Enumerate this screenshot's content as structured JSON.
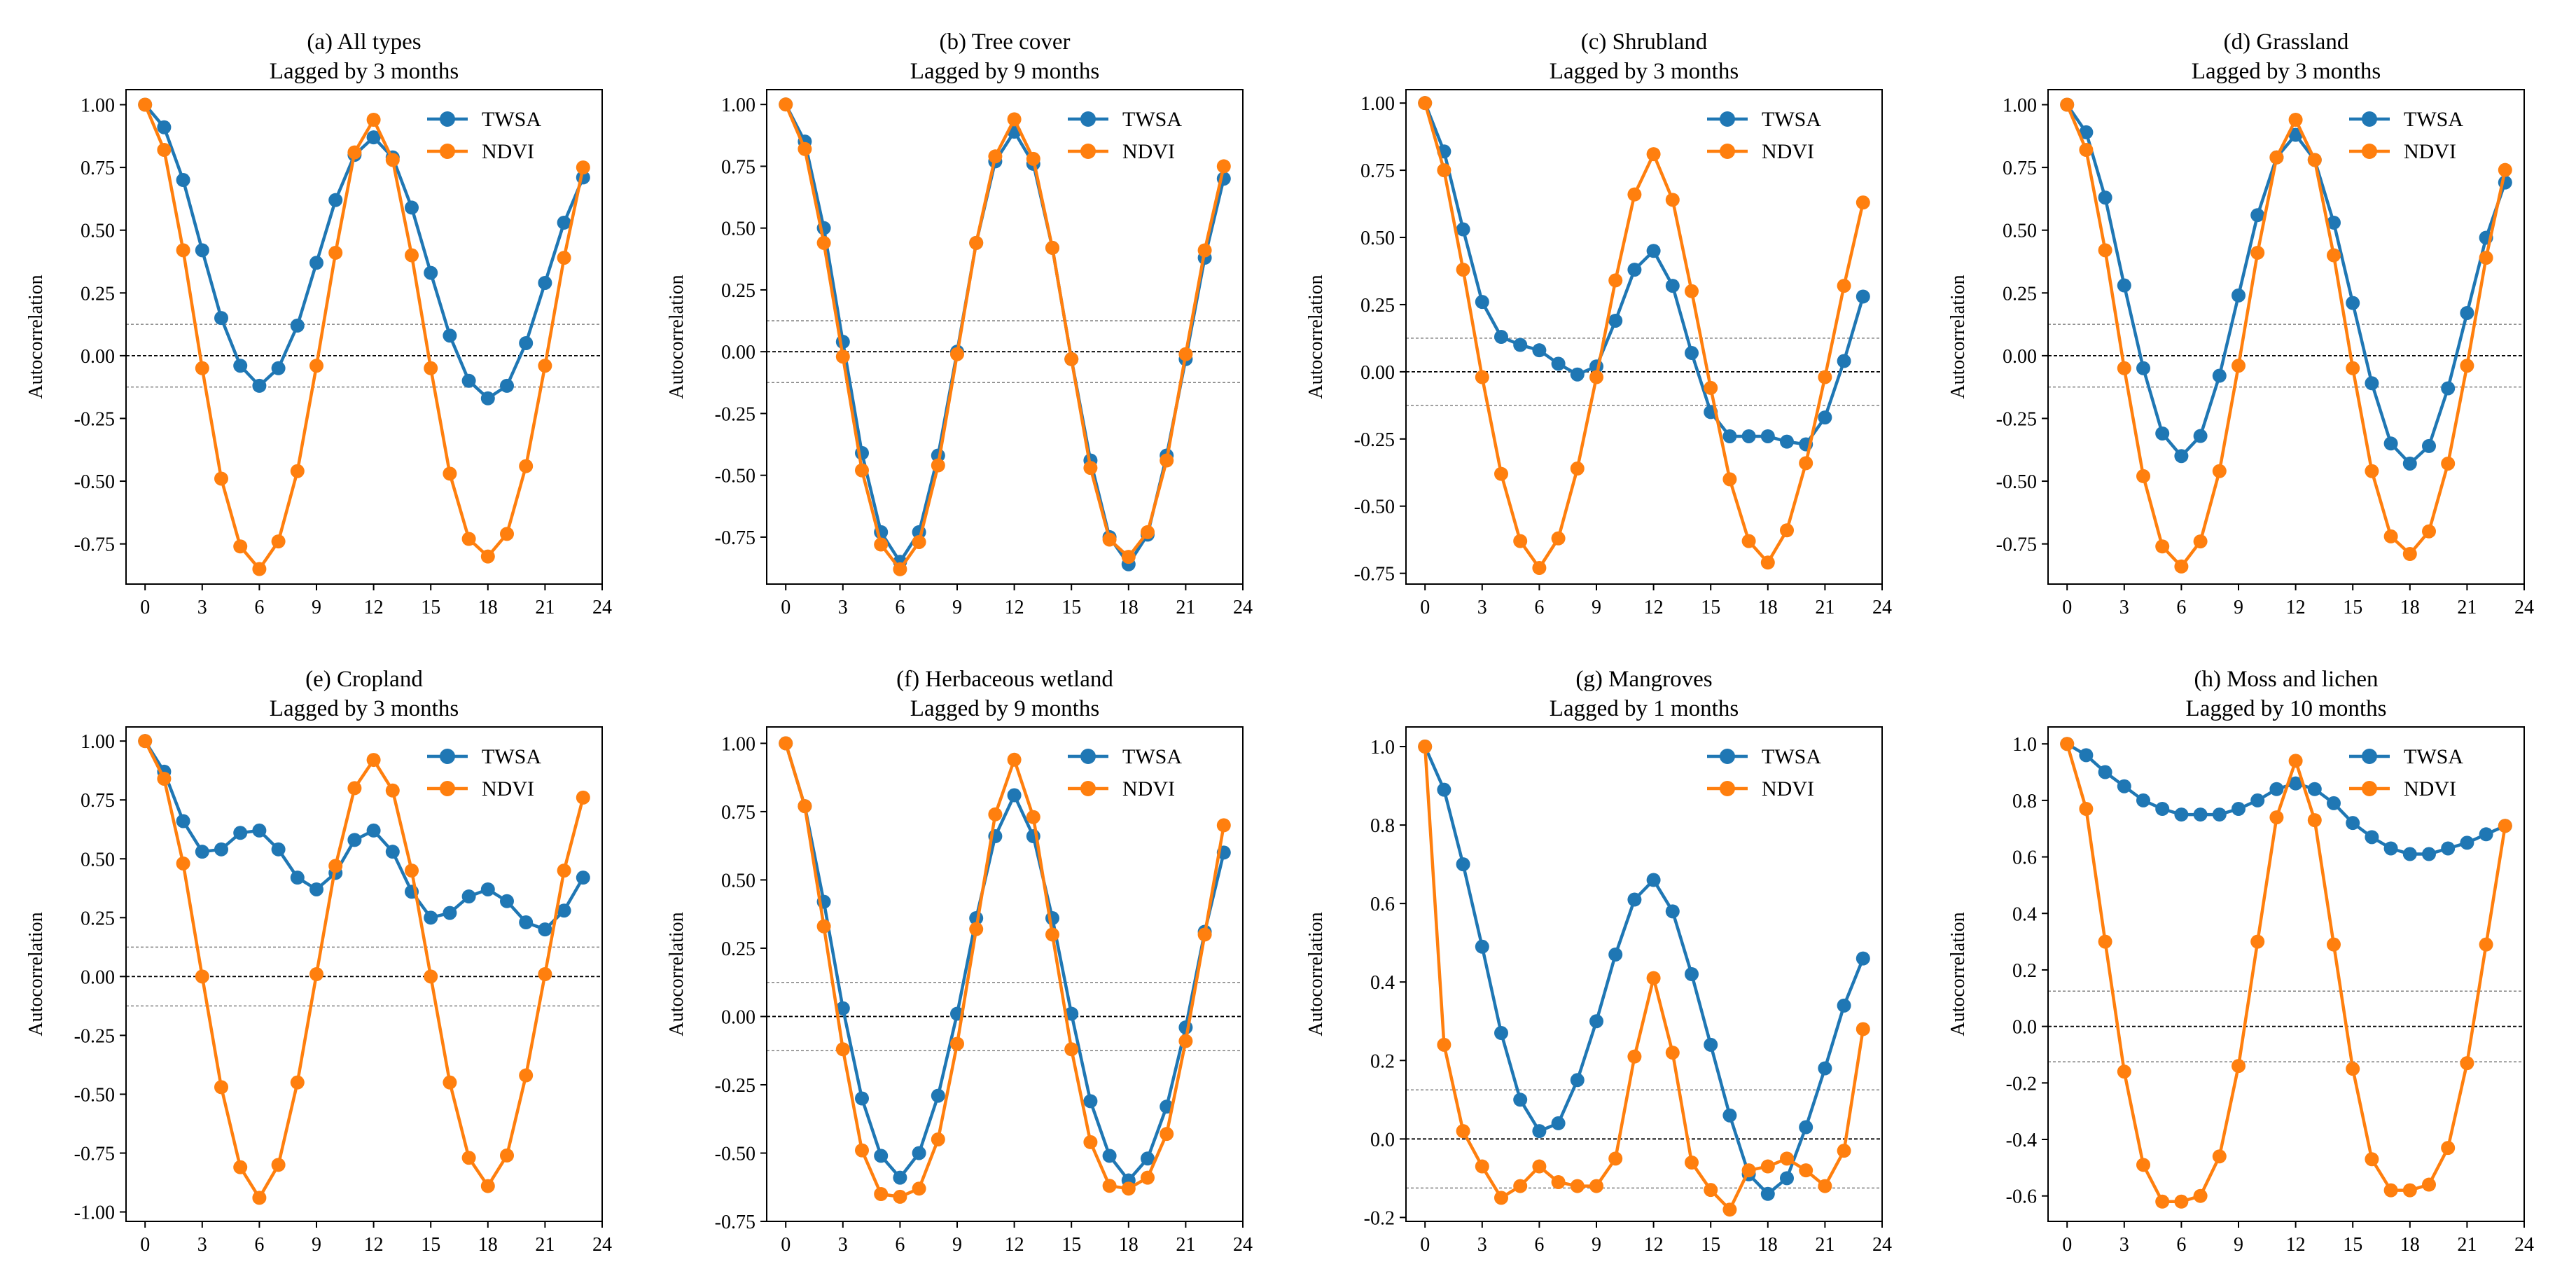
{
  "figure": {
    "series_names": [
      "TWSA",
      "NDVI"
    ],
    "colors": {
      "TWSA": "#1f77b4",
      "NDVI": "#ff7f0e",
      "zero_line": "#000000",
      "threshold_line": "#808080"
    },
    "significance_threshold": 0.125
  },
  "chart_data": [
    {
      "type": "line",
      "title": "(a) All types",
      "subtitle": "Lagged by 3 months",
      "xlabel": "",
      "ylabel": "Autocorrelation",
      "x": [
        0,
        1,
        2,
        3,
        4,
        5,
        6,
        7,
        8,
        9,
        10,
        11,
        12,
        13,
        14,
        15,
        16,
        17,
        18,
        19,
        20,
        21,
        22,
        23
      ],
      "xticks": [
        0,
        3,
        6,
        9,
        12,
        15,
        18,
        21,
        24
      ],
      "xlim": [
        -1,
        24
      ],
      "yticks": [
        -0.75,
        -0.5,
        -0.25,
        0.0,
        0.25,
        0.5,
        0.75,
        1.0
      ],
      "ytick_labels": [
        "-0.75",
        "-0.50",
        "-0.25",
        "0.00",
        "0.25",
        "0.50",
        "0.75",
        "1.00"
      ],
      "ylim": [
        -0.91,
        1.06
      ],
      "series": [
        {
          "name": "TWSA",
          "values": [
            1.0,
            0.91,
            0.7,
            0.42,
            0.15,
            -0.04,
            -0.12,
            -0.05,
            0.12,
            0.37,
            0.62,
            0.8,
            0.87,
            0.79,
            0.59,
            0.33,
            0.08,
            -0.1,
            -0.17,
            -0.12,
            0.05,
            0.29,
            0.53,
            0.71
          ]
        },
        {
          "name": "NDVI",
          "values": [
            1.0,
            0.82,
            0.42,
            -0.05,
            -0.49,
            -0.76,
            -0.85,
            -0.74,
            -0.46,
            -0.04,
            0.41,
            0.81,
            0.94,
            0.78,
            0.4,
            -0.05,
            -0.47,
            -0.73,
            -0.8,
            -0.71,
            -0.44,
            -0.04,
            0.39,
            0.75
          ]
        }
      ],
      "legend": "top-right"
    },
    {
      "type": "line",
      "title": "(b) Tree cover",
      "subtitle": "Lagged by 9 months",
      "xlabel": "",
      "ylabel": "Autocorrelation",
      "x": [
        0,
        1,
        2,
        3,
        4,
        5,
        6,
        7,
        8,
        9,
        10,
        11,
        12,
        13,
        14,
        15,
        16,
        17,
        18,
        19,
        20,
        21,
        22,
        23
      ],
      "xticks": [
        0,
        3,
        6,
        9,
        12,
        15,
        18,
        21,
        24
      ],
      "xlim": [
        -1,
        24
      ],
      "yticks": [
        -0.75,
        -0.5,
        -0.25,
        0.0,
        0.25,
        0.5,
        0.75,
        1.0
      ],
      "ytick_labels": [
        "-0.75",
        "-0.50",
        "-0.25",
        "0.00",
        "0.25",
        "0.50",
        "0.75",
        "1.00"
      ],
      "ylim": [
        -0.94,
        1.06
      ],
      "series": [
        {
          "name": "TWSA",
          "values": [
            1.0,
            0.85,
            0.5,
            0.04,
            -0.41,
            -0.73,
            -0.85,
            -0.73,
            -0.42,
            0.0,
            0.44,
            0.77,
            0.89,
            0.76,
            0.42,
            -0.03,
            -0.44,
            -0.75,
            -0.86,
            -0.74,
            -0.42,
            -0.03,
            0.38,
            0.7
          ]
        },
        {
          "name": "NDVI",
          "values": [
            1.0,
            0.82,
            0.44,
            -0.02,
            -0.48,
            -0.78,
            -0.88,
            -0.77,
            -0.46,
            -0.01,
            0.44,
            0.79,
            0.94,
            0.78,
            0.42,
            -0.03,
            -0.47,
            -0.76,
            -0.83,
            -0.73,
            -0.44,
            -0.01,
            0.41,
            0.75
          ]
        }
      ],
      "legend": "top-right"
    },
    {
      "type": "line",
      "title": "(c) Shrubland",
      "subtitle": "Lagged by 3 months",
      "xlabel": "",
      "ylabel": "Autocorrelation",
      "x": [
        0,
        1,
        2,
        3,
        4,
        5,
        6,
        7,
        8,
        9,
        10,
        11,
        12,
        13,
        14,
        15,
        16,
        17,
        18,
        19,
        20,
        21,
        22,
        23
      ],
      "xticks": [
        0,
        3,
        6,
        9,
        12,
        15,
        18,
        21,
        24
      ],
      "xlim": [
        -1,
        24
      ],
      "yticks": [
        -0.75,
        -0.5,
        -0.25,
        0.0,
        0.25,
        0.5,
        0.75,
        1.0
      ],
      "ytick_labels": [
        "-0.75",
        "-0.50",
        "-0.25",
        "0.00",
        "0.25",
        "0.50",
        "0.75",
        "1.00"
      ],
      "ylim": [
        -0.79,
        1.05
      ],
      "series": [
        {
          "name": "TWSA",
          "values": [
            1.0,
            0.82,
            0.53,
            0.26,
            0.13,
            0.1,
            0.08,
            0.03,
            -0.01,
            0.02,
            0.19,
            0.38,
            0.45,
            0.32,
            0.07,
            -0.15,
            -0.24,
            -0.24,
            -0.24,
            -0.26,
            -0.27,
            -0.17,
            0.04,
            0.28
          ]
        },
        {
          "name": "NDVI",
          "values": [
            1.0,
            0.75,
            0.38,
            -0.02,
            -0.38,
            -0.63,
            -0.73,
            -0.62,
            -0.36,
            -0.02,
            0.34,
            0.66,
            0.81,
            0.64,
            0.3,
            -0.06,
            -0.4,
            -0.63,
            -0.71,
            -0.59,
            -0.34,
            -0.02,
            0.32,
            0.63
          ]
        }
      ],
      "legend": "top-right"
    },
    {
      "type": "line",
      "title": "(d) Grassland",
      "subtitle": "Lagged by 3 months",
      "xlabel": "",
      "ylabel": "Autocorrelation",
      "x": [
        0,
        1,
        2,
        3,
        4,
        5,
        6,
        7,
        8,
        9,
        10,
        11,
        12,
        13,
        14,
        15,
        16,
        17,
        18,
        19,
        20,
        21,
        22,
        23
      ],
      "xticks": [
        0,
        3,
        6,
        9,
        12,
        15,
        18,
        21,
        24
      ],
      "xlim": [
        -1,
        24
      ],
      "yticks": [
        -0.75,
        -0.5,
        -0.25,
        0.0,
        0.25,
        0.5,
        0.75,
        1.0
      ],
      "ytick_labels": [
        "-0.75",
        "-0.50",
        "-0.25",
        "0.00",
        "0.25",
        "0.50",
        "0.75",
        "1.00"
      ],
      "ylim": [
        -0.91,
        1.06
      ],
      "series": [
        {
          "name": "TWSA",
          "values": [
            1.0,
            0.89,
            0.63,
            0.28,
            -0.05,
            -0.31,
            -0.4,
            -0.32,
            -0.08,
            0.24,
            0.56,
            0.79,
            0.88,
            0.78,
            0.53,
            0.21,
            -0.11,
            -0.35,
            -0.43,
            -0.36,
            -0.13,
            0.17,
            0.47,
            0.69
          ]
        },
        {
          "name": "NDVI",
          "values": [
            1.0,
            0.82,
            0.42,
            -0.05,
            -0.48,
            -0.76,
            -0.84,
            -0.74,
            -0.46,
            -0.04,
            0.41,
            0.79,
            0.94,
            0.78,
            0.4,
            -0.05,
            -0.46,
            -0.72,
            -0.79,
            -0.7,
            -0.43,
            -0.04,
            0.39,
            0.74
          ]
        }
      ],
      "legend": "top-right"
    },
    {
      "type": "line",
      "title": "(e) Cropland",
      "subtitle": "Lagged by 3 months",
      "xlabel": "",
      "ylabel": "Autocorrelation",
      "x": [
        0,
        1,
        2,
        3,
        4,
        5,
        6,
        7,
        8,
        9,
        10,
        11,
        12,
        13,
        14,
        15,
        16,
        17,
        18,
        19,
        20,
        21,
        22,
        23
      ],
      "xticks": [
        0,
        3,
        6,
        9,
        12,
        15,
        18,
        21,
        24
      ],
      "xlim": [
        -1,
        24
      ],
      "yticks": [
        -1.0,
        -0.75,
        -0.5,
        -0.25,
        0.0,
        0.25,
        0.5,
        0.75,
        1.0
      ],
      "ytick_labels": [
        "-1.00",
        "-0.75",
        "-0.50",
        "-0.25",
        "0.00",
        "0.25",
        "0.50",
        "0.75",
        "1.00"
      ],
      "ylim": [
        -1.04,
        1.06
      ],
      "series": [
        {
          "name": "TWSA",
          "values": [
            1.0,
            0.87,
            0.66,
            0.53,
            0.54,
            0.61,
            0.62,
            0.54,
            0.42,
            0.37,
            0.44,
            0.58,
            0.62,
            0.53,
            0.36,
            0.25,
            0.27,
            0.34,
            0.37,
            0.32,
            0.23,
            0.2,
            0.28,
            0.42
          ]
        },
        {
          "name": "NDVI",
          "values": [
            1.0,
            0.84,
            0.48,
            0.0,
            -0.47,
            -0.81,
            -0.94,
            -0.8,
            -0.45,
            0.01,
            0.47,
            0.8,
            0.92,
            0.79,
            0.45,
            0.0,
            -0.45,
            -0.77,
            -0.89,
            -0.76,
            -0.42,
            0.01,
            0.45,
            0.76
          ]
        }
      ],
      "legend": "top-right"
    },
    {
      "type": "line",
      "title": "(f) Herbaceous wetland",
      "subtitle": "Lagged by 9 months",
      "xlabel": "",
      "ylabel": "Autocorrelation",
      "x": [
        0,
        1,
        2,
        3,
        4,
        5,
        6,
        7,
        8,
        9,
        10,
        11,
        12,
        13,
        14,
        15,
        16,
        17,
        18,
        19,
        20,
        21,
        22,
        23
      ],
      "xticks": [
        0,
        3,
        6,
        9,
        12,
        15,
        18,
        21,
        24
      ],
      "xlim": [
        -1,
        24
      ],
      "yticks": [
        -0.75,
        -0.5,
        -0.25,
        0.0,
        0.25,
        0.5,
        0.75,
        1.0
      ],
      "ytick_labels": [
        "-0.75",
        "-0.50",
        "-0.25",
        "0.00",
        "0.25",
        "0.50",
        "0.75",
        "1.00"
      ],
      "ylim": [
        -0.75,
        1.06
      ],
      "series": [
        {
          "name": "TWSA",
          "values": [
            1.0,
            0.77,
            0.42,
            0.03,
            -0.3,
            -0.51,
            -0.59,
            -0.5,
            -0.29,
            0.01,
            0.36,
            0.66,
            0.81,
            0.66,
            0.36,
            0.01,
            -0.31,
            -0.51,
            -0.6,
            -0.52,
            -0.33,
            -0.04,
            0.31,
            0.6
          ]
        },
        {
          "name": "NDVI",
          "values": [
            1.0,
            0.77,
            0.33,
            -0.12,
            -0.49,
            -0.65,
            -0.66,
            -0.63,
            -0.45,
            -0.1,
            0.32,
            0.74,
            0.94,
            0.73,
            0.3,
            -0.12,
            -0.46,
            -0.62,
            -0.63,
            -0.59,
            -0.43,
            -0.09,
            0.3,
            0.7
          ]
        }
      ],
      "legend": "top-right"
    },
    {
      "type": "line",
      "title": "(g) Mangroves",
      "subtitle": "Lagged by 1 months",
      "xlabel": "",
      "ylabel": "Autocorrelation",
      "x": [
        0,
        1,
        2,
        3,
        4,
        5,
        6,
        7,
        8,
        9,
        10,
        11,
        12,
        13,
        14,
        15,
        16,
        17,
        18,
        19,
        20,
        21,
        22,
        23
      ],
      "xticks": [
        0,
        3,
        6,
        9,
        12,
        15,
        18,
        21,
        24
      ],
      "xlim": [
        -1,
        24
      ],
      "yticks": [
        -0.2,
        0.0,
        0.2,
        0.4,
        0.6,
        0.8,
        1.0
      ],
      "ytick_labels": [
        "-0.2",
        "0.0",
        "0.2",
        "0.4",
        "0.6",
        "0.8",
        "1.0"
      ],
      "ylim": [
        -0.21,
        1.05
      ],
      "series": [
        {
          "name": "TWSA",
          "values": [
            1.0,
            0.89,
            0.7,
            0.49,
            0.27,
            0.1,
            0.02,
            0.04,
            0.15,
            0.3,
            0.47,
            0.61,
            0.66,
            0.58,
            0.42,
            0.24,
            0.06,
            -0.09,
            -0.14,
            -0.1,
            0.03,
            0.18,
            0.34,
            0.46
          ]
        },
        {
          "name": "NDVI",
          "values": [
            1.0,
            0.24,
            0.02,
            -0.07,
            -0.15,
            -0.12,
            -0.07,
            -0.11,
            -0.12,
            -0.12,
            -0.05,
            0.21,
            0.41,
            0.22,
            -0.06,
            -0.13,
            -0.18,
            -0.08,
            -0.07,
            -0.05,
            -0.08,
            -0.12,
            -0.03,
            0.28
          ]
        }
      ],
      "legend": "top-right"
    },
    {
      "type": "line",
      "title": "(h) Moss and lichen",
      "subtitle": "Lagged by 10 months",
      "xlabel": "",
      "ylabel": "Autocorrelation",
      "x": [
        0,
        1,
        2,
        3,
        4,
        5,
        6,
        7,
        8,
        9,
        10,
        11,
        12,
        13,
        14,
        15,
        16,
        17,
        18,
        19,
        20,
        21,
        22,
        23
      ],
      "xticks": [
        0,
        3,
        6,
        9,
        12,
        15,
        18,
        21,
        24
      ],
      "xlim": [
        -1,
        24
      ],
      "yticks": [
        -0.6,
        -0.4,
        -0.2,
        0.0,
        0.2,
        0.4,
        0.6,
        0.8,
        1.0
      ],
      "ytick_labels": [
        "-0.6",
        "-0.4",
        "-0.2",
        "0.0",
        "0.2",
        "0.4",
        "0.6",
        "0.8",
        "1.0"
      ],
      "ylim": [
        -0.69,
        1.06
      ],
      "series": [
        {
          "name": "TWSA",
          "values": [
            1.0,
            0.96,
            0.9,
            0.85,
            0.8,
            0.77,
            0.75,
            0.75,
            0.75,
            0.77,
            0.8,
            0.84,
            0.86,
            0.84,
            0.79,
            0.72,
            0.67,
            0.63,
            0.61,
            0.61,
            0.63,
            0.65,
            0.68,
            0.71
          ]
        },
        {
          "name": "NDVI",
          "values": [
            1.0,
            0.77,
            0.3,
            -0.16,
            -0.49,
            -0.62,
            -0.62,
            -0.6,
            -0.46,
            -0.14,
            0.3,
            0.74,
            0.94,
            0.73,
            0.29,
            -0.15,
            -0.47,
            -0.58,
            -0.58,
            -0.56,
            -0.43,
            -0.13,
            0.29,
            0.71
          ]
        }
      ],
      "legend": "top-right"
    }
  ]
}
